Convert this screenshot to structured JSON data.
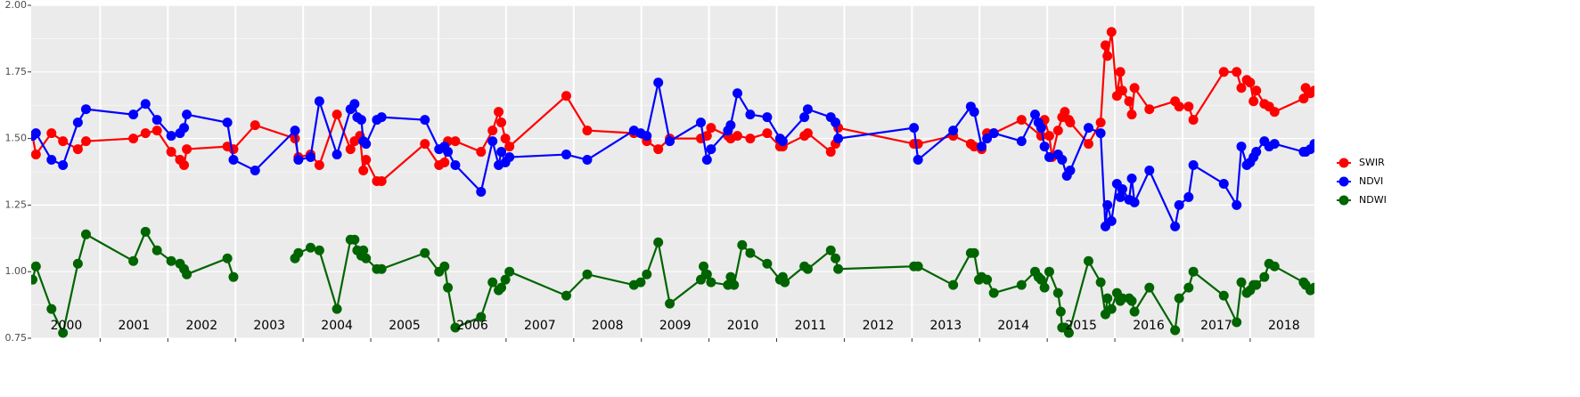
{
  "chart_data": {
    "type": "line",
    "xlim": [
      1999.98,
      2018.95
    ],
    "ylim": [
      0.75,
      2.0
    ],
    "xticks": [
      2001,
      2002,
      2003,
      2004,
      2005,
      2006,
      2007,
      2008,
      2009,
      2010,
      2011,
      2012,
      2013,
      2014,
      2015,
      2016,
      2017,
      2018
    ],
    "year_labels": [
      "2000",
      "2001",
      "2002",
      "2003",
      "2004",
      "2005",
      "2006",
      "2007",
      "2008",
      "2009",
      "2010",
      "2011",
      "2012",
      "2013",
      "2014",
      "2015",
      "2016",
      "2017",
      "2018"
    ],
    "yticks": [
      0.75,
      {
        "value": 1,
        "label": "1.00"
      },
      1.25,
      {
        "value": 1.5,
        "label": "1.50"
      },
      1.75,
      {
        "value": 2,
        "label": "2.00"
      }
    ],
    "grid": true,
    "legend": "right",
    "series": [
      {
        "name": "SWIR",
        "color": "#ff0000",
        "x": [
          2000,
          2000.05,
          2000.28,
          2000.45,
          2000.67,
          2000.79,
          2001.49,
          2001.67,
          2001.84,
          2002.05,
          2002.18,
          2002.24,
          2002.28,
          2002.88,
          2002.97,
          2003.29,
          2003.88,
          2003.93,
          2004.11,
          2004.24,
          2004.5,
          2004.7,
          2004.76,
          2004.84,
          2004.89,
          2004.93,
          2005.09,
          2005.16,
          2005.8,
          2006.01,
          2006.09,
          2006.14,
          2006.25,
          2006.63,
          2006.8,
          2006.89,
          2006.93,
          2006.99,
          2007.05,
          2007.89,
          2008.2,
          2008.89,
          2009.08,
          2009.25,
          2009.42,
          2009.88,
          2009.97,
          2010.03,
          2010.28,
          2010.32,
          2010.42,
          2010.61,
          2010.86,
          2011.05,
          2011.09,
          2011.41,
          2011.46,
          2011.8,
          2011.87,
          2011.91,
          2013.03,
          2013.09,
          2013.61,
          2013.87,
          2013.92,
          2014.03,
          2014.11,
          2014.21,
          2014.62,
          2014.91,
          2014.96,
          2015.03,
          2015.07,
          2015.16,
          2015.22,
          2015.26,
          2015.32,
          2015.34,
          2015.61,
          2015.79,
          2015.86,
          2015.89,
          2015.95,
          2016.03,
          2016.08,
          2016.11,
          2016.21,
          2016.25,
          2016.29,
          2016.51,
          2016.89,
          2016.95,
          2017.09,
          2017.16,
          2017.61,
          2017.8,
          2017.87,
          2017.95,
          2018,
          2018.05,
          2018.09,
          2018.21,
          2018.28,
          2018.36,
          2018.79,
          2018.82,
          2018.89,
          2018.95
        ],
        "values": [
          1.51,
          1.44,
          1.52,
          1.49,
          1.46,
          1.49,
          1.5,
          1.52,
          1.53,
          1.45,
          1.42,
          1.4,
          1.46,
          1.47,
          1.46,
          1.55,
          1.5,
          1.43,
          1.44,
          1.4,
          1.59,
          1.46,
          1.49,
          1.51,
          1.38,
          1.42,
          1.34,
          1.34,
          1.48,
          1.4,
          1.41,
          1.49,
          1.49,
          1.45,
          1.53,
          1.6,
          1.56,
          1.5,
          1.47,
          1.66,
          1.53,
          1.52,
          1.49,
          1.46,
          1.5,
          1.5,
          1.51,
          1.54,
          1.51,
          1.5,
          1.51,
          1.5,
          1.52,
          1.47,
          1.47,
          1.51,
          1.52,
          1.45,
          1.48,
          1.54,
          1.48,
          1.48,
          1.51,
          1.48,
          1.47,
          1.46,
          1.52,
          1.52,
          1.57,
          1.51,
          1.57,
          1.51,
          1.43,
          1.53,
          1.58,
          1.6,
          1.57,
          1.56,
          1.48,
          1.56,
          1.85,
          1.81,
          1.9,
          1.66,
          1.75,
          1.68,
          1.64,
          1.59,
          1.69,
          1.61,
          1.64,
          1.62,
          1.62,
          1.57,
          1.75,
          1.75,
          1.69,
          1.72,
          1.71,
          1.64,
          1.68,
          1.63,
          1.62,
          1.6,
          1.65,
          1.69,
          1.67,
          1.68
        ]
      },
      {
        "name": "NDVI",
        "color": "#0000ff",
        "x": [
          2000,
          2000.05,
          2000.28,
          2000.45,
          2000.67,
          2000.79,
          2001.49,
          2001.67,
          2001.84,
          2002.05,
          2002.18,
          2002.24,
          2002.28,
          2002.88,
          2002.97,
          2003.29,
          2003.88,
          2003.93,
          2004.11,
          2004.24,
          2004.5,
          2004.7,
          2004.76,
          2004.8,
          2004.86,
          2004.89,
          2004.93,
          2005.09,
          2005.16,
          2005.8,
          2006.01,
          2006.09,
          2006.14,
          2006.25,
          2006.63,
          2006.8,
          2006.89,
          2006.93,
          2006.99,
          2007.05,
          2007.89,
          2008.2,
          2008.89,
          2008.99,
          2009.08,
          2009.25,
          2009.42,
          2009.88,
          2009.97,
          2010.03,
          2010.28,
          2010.32,
          2010.42,
          2010.61,
          2010.86,
          2011.05,
          2011.09,
          2011.41,
          2011.46,
          2011.8,
          2011.87,
          2011.91,
          2013.03,
          2013.09,
          2013.61,
          2013.87,
          2013.92,
          2014.03,
          2014.11,
          2014.21,
          2014.62,
          2014.82,
          2014.87,
          2014.91,
          2014.96,
          2015.03,
          2015.16,
          2015.22,
          2015.29,
          2015.34,
          2015.61,
          2015.79,
          2015.86,
          2015.89,
          2015.95,
          2016.03,
          2016.08,
          2016.11,
          2016.21,
          2016.25,
          2016.29,
          2016.51,
          2016.89,
          2016.95,
          2017.09,
          2017.16,
          2017.61,
          2017.8,
          2017.87,
          2017.95,
          2018,
          2018.05,
          2018.09,
          2018.21,
          2018.28,
          2018.36,
          2018.79,
          2018.82,
          2018.89,
          2018.95
        ],
        "values": [
          1.51,
          1.52,
          1.42,
          1.4,
          1.56,
          1.61,
          1.59,
          1.63,
          1.57,
          1.51,
          1.52,
          1.54,
          1.59,
          1.56,
          1.42,
          1.38,
          1.53,
          1.42,
          1.43,
          1.64,
          1.44,
          1.61,
          1.63,
          1.58,
          1.57,
          1.49,
          1.48,
          1.57,
          1.58,
          1.57,
          1.46,
          1.47,
          1.45,
          1.4,
          1.3,
          1.49,
          1.4,
          1.45,
          1.41,
          1.43,
          1.44,
          1.42,
          1.53,
          1.52,
          1.51,
          1.71,
          1.49,
          1.56,
          1.42,
          1.46,
          1.53,
          1.55,
          1.67,
          1.59,
          1.58,
          1.5,
          1.49,
          1.58,
          1.61,
          1.58,
          1.56,
          1.5,
          1.54,
          1.42,
          1.53,
          1.62,
          1.6,
          1.47,
          1.5,
          1.52,
          1.49,
          1.59,
          1.56,
          1.54,
          1.47,
          1.43,
          1.44,
          1.42,
          1.36,
          1.38,
          1.54,
          1.52,
          1.17,
          1.25,
          1.19,
          1.33,
          1.28,
          1.31,
          1.27,
          1.35,
          1.26,
          1.38,
          1.17,
          1.25,
          1.28,
          1.4,
          1.33,
          1.25,
          1.47,
          1.4,
          1.41,
          1.43,
          1.45,
          1.49,
          1.47,
          1.48,
          1.45,
          1.45,
          1.46,
          1.48
        ]
      },
      {
        "name": "NDWI",
        "color": "#006400",
        "x": [
          2000,
          2000.05,
          2000.28,
          2000.45,
          2000.67,
          2000.79,
          2001.49,
          2001.67,
          2001.84,
          2002.05,
          2002.18,
          2002.24,
          2002.28,
          2002.88,
          2002.97,
          null,
          2003.88,
          2003.93,
          2004.11,
          2004.24,
          2004.5,
          2004.7,
          2004.76,
          2004.8,
          2004.86,
          2004.89,
          2004.93,
          2005.09,
          2005.16,
          2005.8,
          2006.01,
          2006.09,
          2006.14,
          2006.25,
          2006.63,
          2006.8,
          2006.89,
          2006.93,
          2006.99,
          2007.05,
          2007.89,
          2008.2,
          2008.89,
          2008.99,
          2009.08,
          2009.25,
          2009.42,
          2009.88,
          2009.92,
          2009.97,
          2010.03,
          2010.28,
          2010.32,
          2010.37,
          2010.49,
          2010.61,
          2010.86,
          2011.05,
          2011.09,
          2011.12,
          2011.41,
          2011.46,
          2011.8,
          2011.87,
          2011.91,
          2013.03,
          2013.09,
          2013.61,
          2013.87,
          2013.92,
          2013.99,
          2014.03,
          2014.11,
          2014.21,
          2014.62,
          2014.82,
          2014.87,
          2014.91,
          2014.96,
          2015.03,
          2015.16,
          2015.2,
          2015.22,
          2015.26,
          2015.32,
          2015.61,
          2015.79,
          2015.86,
          2015.89,
          2015.95,
          2016.03,
          2016.08,
          2016.11,
          2016.21,
          2016.25,
          2016.29,
          2016.51,
          2016.89,
          2016.95,
          2017.09,
          2017.16,
          2017.61,
          2017.8,
          2017.87,
          2017.95,
          2018,
          2018.05,
          2018.09,
          2018.21,
          2018.28,
          2018.36,
          2018.79,
          2018.82,
          2018.89,
          2018.95
        ],
        "values": [
          0.97,
          1.02,
          0.86,
          0.77,
          1.03,
          1.14,
          1.04,
          1.15,
          1.08,
          1.04,
          1.03,
          1.01,
          0.99,
          1.05,
          0.98,
          null,
          1.05,
          1.07,
          1.09,
          1.08,
          0.86,
          1.12,
          1.12,
          1.08,
          1.06,
          1.08,
          1.05,
          1.01,
          1.01,
          1.07,
          1.0,
          1.02,
          0.94,
          0.79,
          0.83,
          0.96,
          0.93,
          0.94,
          0.97,
          1.0,
          0.91,
          0.99,
          0.95,
          0.96,
          0.99,
          1.11,
          0.88,
          0.97,
          1.02,
          0.99,
          0.96,
          0.95,
          0.98,
          0.95,
          1.1,
          1.07,
          1.03,
          0.97,
          0.98,
          0.96,
          1.02,
          1.01,
          1.08,
          1.05,
          1.01,
          1.02,
          1.02,
          0.95,
          1.07,
          1.07,
          0.97,
          0.98,
          0.97,
          0.92,
          0.95,
          1.0,
          0.98,
          0.97,
          0.94,
          1.0,
          0.92,
          0.85,
          0.79,
          0.79,
          0.77,
          1.04,
          0.96,
          0.84,
          0.9,
          0.86,
          0.92,
          0.89,
          0.9,
          0.9,
          0.89,
          0.85,
          0.94,
          0.78,
          0.9,
          0.94,
          1.0,
          0.91,
          0.81,
          0.96,
          0.92,
          0.93,
          0.95,
          0.95,
          0.98,
          1.03,
          1.02,
          0.96,
          0.95,
          0.93,
          0.94
        ]
      }
    ]
  }
}
